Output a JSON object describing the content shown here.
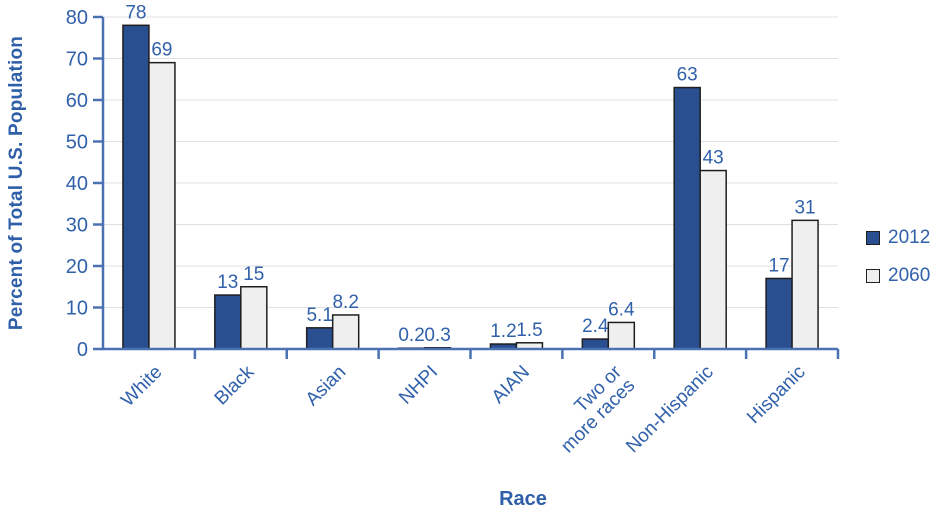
{
  "chart_data": {
    "type": "bar",
    "title": "",
    "xlabel": "Race",
    "ylabel": "Percent of Total U.S. Population",
    "categories": [
      "White",
      "Black",
      "Asian",
      "NHPI",
      "AIAN",
      "Two or\nmore races",
      "Non-Hispanic",
      "Hispanic"
    ],
    "series": [
      {
        "name": "2012",
        "values": [
          78,
          13,
          5.1,
          0.2,
          1.2,
          2.4,
          63,
          17
        ],
        "color": "#2a4f90"
      },
      {
        "name": "2060",
        "values": [
          69,
          15,
          8.2,
          0.3,
          1.5,
          6.4,
          43,
          31
        ],
        "color": "#efeff0"
      }
    ],
    "ylim": [
      0,
      80
    ],
    "ytick_step": 10,
    "ytick_labels": [
      "0",
      "10",
      "20",
      "30",
      "40",
      "50",
      "60",
      "70",
      "80"
    ],
    "grid": true,
    "legend_position": "right",
    "data_labels_shown": true
  },
  "colors": {
    "text_blue": "#3161ab",
    "title_blue": "#2e5fa8",
    "axis_blue": "#4a72b2",
    "gridline": "#e0e0e0",
    "bar_border": "#1f1f1f",
    "background": "#ffffff"
  }
}
